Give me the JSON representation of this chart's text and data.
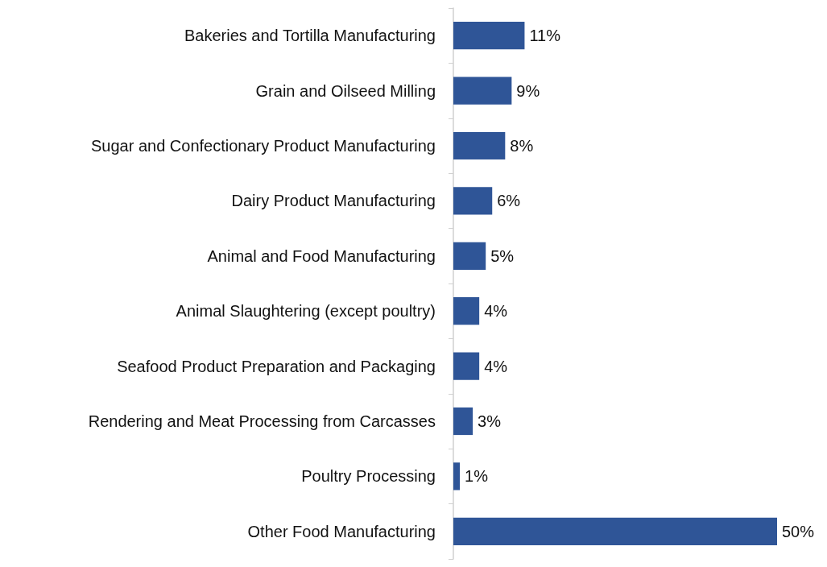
{
  "chart_data": {
    "type": "bar",
    "orientation": "horizontal",
    "categories": [
      "Bakeries and Tortilla Manufacturing",
      "Grain and Oilseed Milling",
      "Sugar and Confectionary Product Manufacturing",
      "Dairy Product Manufacturing",
      "Animal and Food Manufacturing",
      "Animal Slaughtering (except poultry)",
      "Seafood Product Preparation and Packaging",
      "Rendering and Meat Processing from Carcasses",
      "Poultry Processing",
      "Other Food Manufacturing"
    ],
    "values": [
      11,
      9,
      8,
      6,
      5,
      4,
      4,
      3,
      1,
      50
    ],
    "value_labels": [
      "11%",
      "9%",
      "8%",
      "6%",
      "5%",
      "4%",
      "4%",
      "3%",
      "1%",
      "50%"
    ],
    "color": "#2f5597"
  }
}
